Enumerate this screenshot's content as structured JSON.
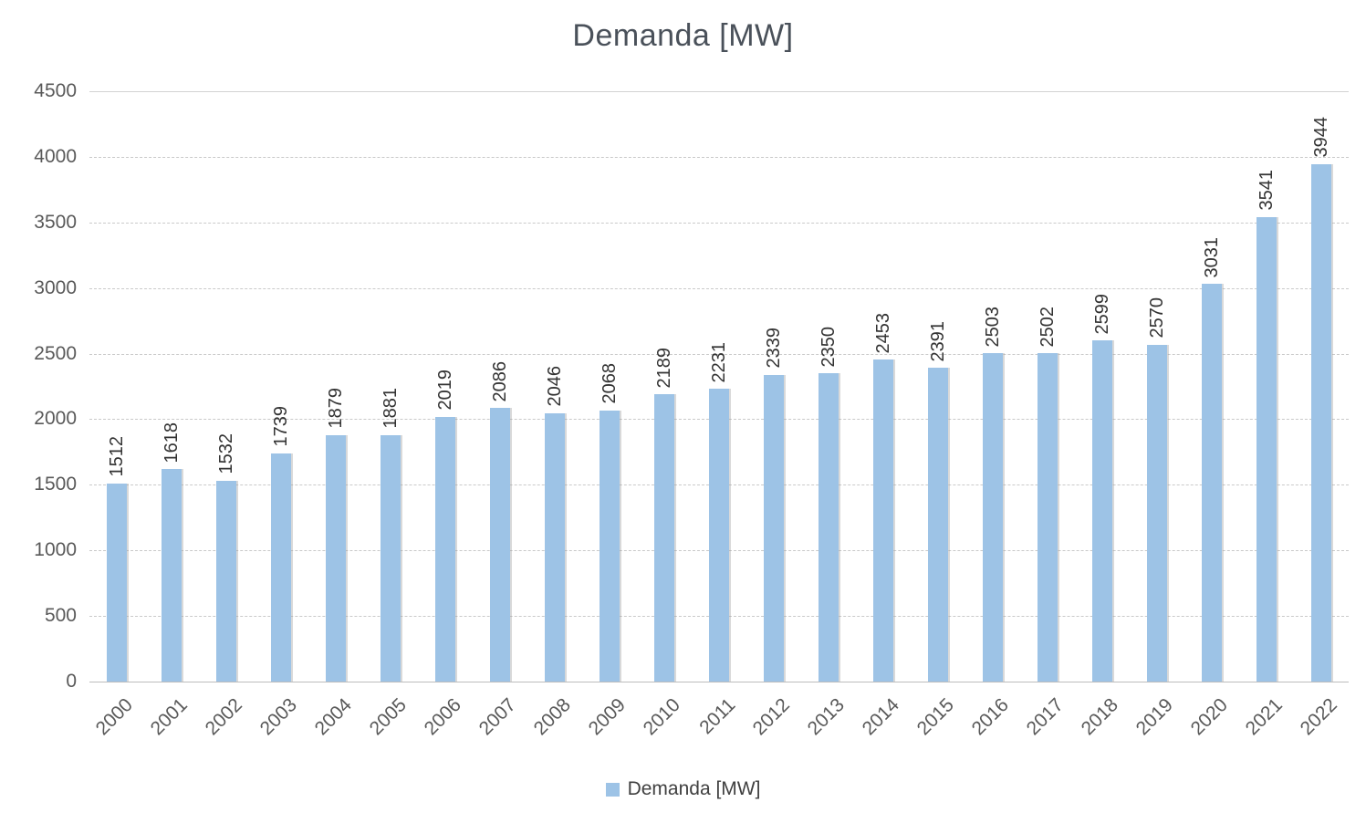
{
  "title": "Demanda [MW]",
  "legend": {
    "label": "Demanda [MW]",
    "swatch_color": "#9DC3E6"
  },
  "colors": {
    "bar": "#9DC3E6",
    "title_text": "#4a515a",
    "axis_text": "#595959",
    "value_label_text": "#333333",
    "gridline": "#c9c9c9"
  },
  "chart_data": {
    "type": "bar",
    "title": "Demanda [MW]",
    "series_name": "Demanda [MW]",
    "categories": [
      "2000",
      "2001",
      "2002",
      "2003",
      "2004",
      "2005",
      "2006",
      "2007",
      "2008",
      "2009",
      "2010",
      "2011",
      "2012",
      "2013",
      "2014",
      "2015",
      "2016",
      "2017",
      "2018",
      "2019",
      "2020",
      "2021",
      "2022"
    ],
    "values": [
      1512,
      1618,
      1532,
      1739,
      1879,
      1881,
      2019,
      2086,
      2046,
      2068,
      2189,
      2231,
      2339,
      2350,
      2453,
      2391,
      2503,
      2502,
      2599,
      2570,
      3031,
      3541,
      3944
    ],
    "xlabel": "",
    "ylabel": "",
    "ylim": [
      0,
      4500
    ],
    "yticks": [
      0,
      500,
      1000,
      1500,
      2000,
      2500,
      3000,
      3500,
      4000,
      4500
    ],
    "grid": "horizontal-dashed",
    "legend_position": "bottom",
    "data_labels": "rotated-vertical-above-bars",
    "x_tick_rotation_deg": 45
  }
}
